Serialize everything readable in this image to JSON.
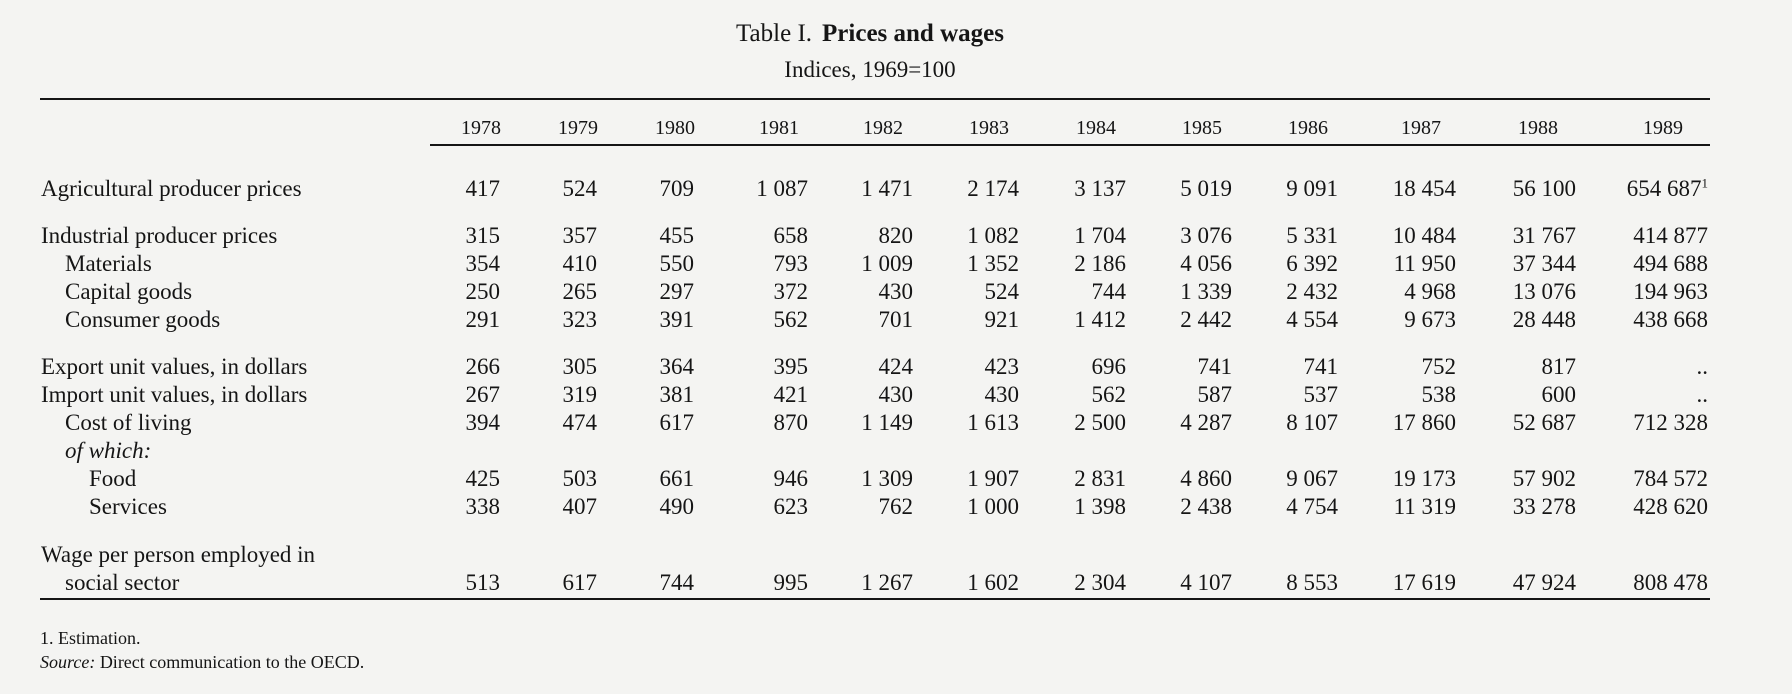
{
  "title": {
    "prefix": "Table I.",
    "main": "Prices and wages"
  },
  "subtitle": "Indices, 1969=100",
  "years": [
    "1978",
    "1979",
    "1980",
    "1981",
    "1982",
    "1983",
    "1984",
    "1985",
    "1986",
    "1987",
    "1988",
    "1989"
  ],
  "rows": [
    {
      "label": "Agricultural producer prices",
      "values": [
        "417",
        "524",
        "709",
        "1 087",
        "1 471",
        "2 174",
        "3 137",
        "5 019",
        "9 091",
        "18 454",
        "56 100",
        "654 687"
      ],
      "note": "1"
    },
    {
      "label": "Industrial producer prices",
      "values": [
        "315",
        "357",
        "455",
        "658",
        "820",
        "1 082",
        "1 704",
        "3 076",
        "5 331",
        "10 484",
        "31 767",
        "414 877"
      ]
    },
    {
      "label": "Materials",
      "values": [
        "354",
        "410",
        "550",
        "793",
        "1 009",
        "1 352",
        "2 186",
        "4 056",
        "6 392",
        "11 950",
        "37 344",
        "494 688"
      ]
    },
    {
      "label": "Capital goods",
      "values": [
        "250",
        "265",
        "297",
        "372",
        "430",
        "524",
        "744",
        "1 339",
        "2 432",
        "4 968",
        "13 076",
        "194 963"
      ]
    },
    {
      "label": "Consumer goods",
      "values": [
        "291",
        "323",
        "391",
        "562",
        "701",
        "921",
        "1 412",
        "2 442",
        "4 554",
        "9 673",
        "28 448",
        "438 668"
      ]
    },
    {
      "label": "Export unit values, in dollars",
      "values": [
        "266",
        "305",
        "364",
        "395",
        "424",
        "423",
        "696",
        "741",
        "741",
        "752",
        "817",
        ".."
      ]
    },
    {
      "label": "Import unit values, in dollars",
      "values": [
        "267",
        "319",
        "381",
        "421",
        "430",
        "430",
        "562",
        "587",
        "537",
        "538",
        "600",
        ".."
      ]
    },
    {
      "label": "Cost of living",
      "values": [
        "394",
        "474",
        "617",
        "870",
        "1 149",
        "1 613",
        "2 500",
        "4 287",
        "8 107",
        "17 860",
        "52 687",
        "712 328"
      ]
    },
    {
      "label": "of which:",
      "values": []
    },
    {
      "label": "Food",
      "values": [
        "425",
        "503",
        "661",
        "946",
        "1 309",
        "1 907",
        "2 831",
        "4 860",
        "9 067",
        "19 173",
        "57 902",
        "784 572"
      ]
    },
    {
      "label": "Services",
      "values": [
        "338",
        "407",
        "490",
        "623",
        "762",
        "1 000",
        "1 398",
        "2 438",
        "4 754",
        "11 319",
        "33 278",
        "428 620"
      ]
    },
    {
      "label": "Wage per person employed in",
      "values": []
    },
    {
      "label": "social sector",
      "values": [
        "513",
        "617",
        "744",
        "995",
        "1 267",
        "1 602",
        "2 304",
        "4 107",
        "8 553",
        "17 619",
        "47 924",
        "808 478"
      ]
    }
  ],
  "footnotes": {
    "note1": "1.  Estimation.",
    "source_label": "Source:",
    "source_text": "Direct communication to the OECD."
  }
}
